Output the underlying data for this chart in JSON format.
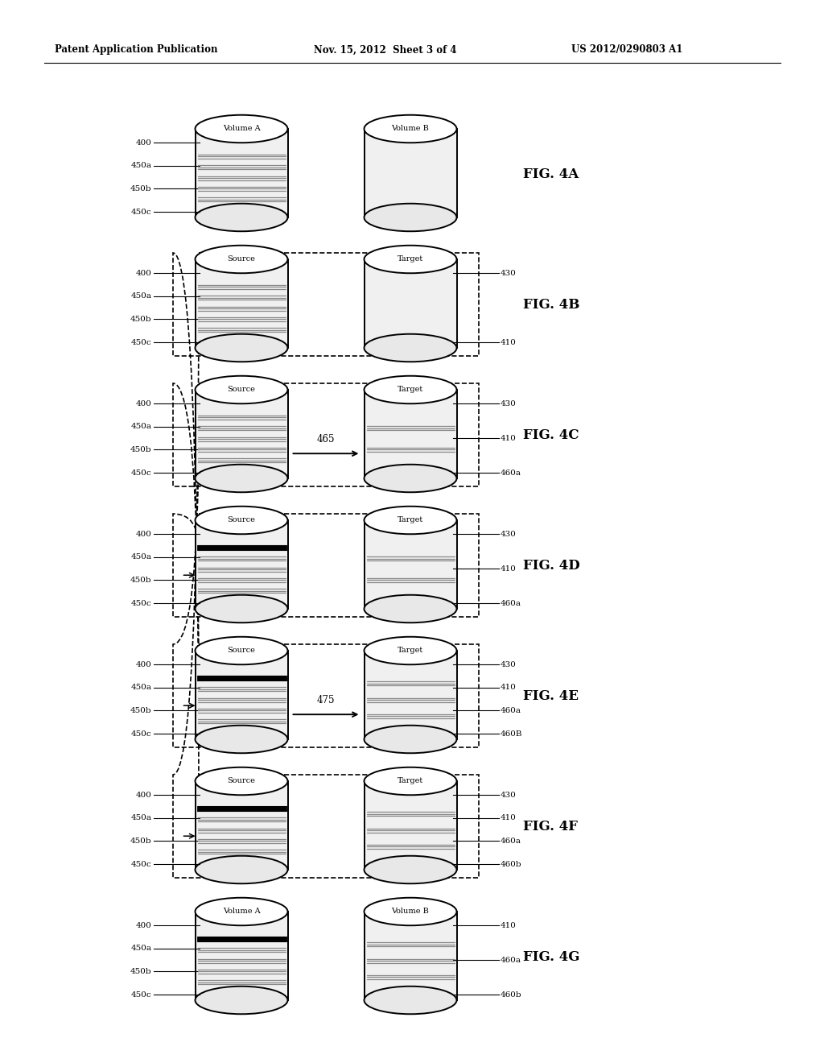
{
  "header_left": "Patent Application Publication",
  "header_mid": "Nov. 15, 2012  Sheet 3 of 4",
  "header_right": "US 2012/0290803 A1",
  "background": "#ffffff",
  "fig_rows": [
    {
      "name": "FIG. 4A",
      "has_ellipse": false,
      "has_horiz_arrow": false,
      "has_left_arrow": false,
      "src_label": "Volume A",
      "tgt_label": "Volume B",
      "src_bands": [
        {
          "thick": false,
          "black": false
        },
        {
          "thick": false,
          "black": false
        },
        {
          "thick": false,
          "black": false
        },
        {
          "thick": false,
          "black": false
        },
        {
          "thick": false,
          "black": false
        }
      ],
      "tgt_bands": [],
      "left_labels": [
        "400",
        "450a",
        "450b",
        "450c"
      ],
      "right_labels": [],
      "arrow_label": null
    },
    {
      "name": "FIG. 4B",
      "has_ellipse": true,
      "has_horiz_arrow": false,
      "has_left_arrow": false,
      "src_label": "Source",
      "tgt_label": "Target",
      "src_bands": [
        {
          "thick": false,
          "black": false
        },
        {
          "thick": false,
          "black": false
        },
        {
          "thick": false,
          "black": false
        },
        {
          "thick": false,
          "black": false
        },
        {
          "thick": false,
          "black": false
        }
      ],
      "tgt_bands": [],
      "left_labels": [
        "400",
        "450a",
        "450b",
        "450c"
      ],
      "right_labels": [
        "430",
        "410"
      ],
      "arrow_label": null
    },
    {
      "name": "FIG. 4C",
      "has_ellipse": true,
      "has_horiz_arrow": true,
      "has_left_arrow": false,
      "src_label": "Source",
      "tgt_label": "Target",
      "src_bands": [
        {
          "thick": false,
          "black": false
        },
        {
          "thick": false,
          "black": false
        },
        {
          "thick": false,
          "black": false
        },
        {
          "thick": false,
          "black": false
        },
        {
          "thick": false,
          "black": false
        }
      ],
      "tgt_bands": [
        {
          "thick": false,
          "black": false
        },
        {
          "thick": false,
          "black": false
        }
      ],
      "left_labels": [
        "400",
        "450a",
        "450b",
        "450c"
      ],
      "right_labels": [
        "430",
        "410",
        "460a"
      ],
      "arrow_label": "465"
    },
    {
      "name": "FIG. 4D",
      "has_ellipse": true,
      "has_horiz_arrow": false,
      "has_left_arrow": true,
      "src_label": "Source",
      "tgt_label": "Target",
      "src_bands": [
        {
          "thick": true,
          "black": true
        },
        {
          "thick": false,
          "black": false
        },
        {
          "thick": false,
          "black": false
        },
        {
          "thick": false,
          "black": false
        },
        {
          "thick": false,
          "black": false
        }
      ],
      "tgt_bands": [
        {
          "thick": false,
          "black": false
        },
        {
          "thick": false,
          "black": false
        }
      ],
      "left_labels": [
        "400",
        "450a",
        "450b",
        "450c"
      ],
      "right_labels": [
        "430",
        "410",
        "460a"
      ],
      "arrow_label": null
    },
    {
      "name": "FIG. 4E",
      "has_ellipse": true,
      "has_horiz_arrow": true,
      "has_left_arrow": true,
      "src_label": "Source",
      "tgt_label": "Target",
      "src_bands": [
        {
          "thick": true,
          "black": true
        },
        {
          "thick": false,
          "black": false
        },
        {
          "thick": false,
          "black": false
        },
        {
          "thick": false,
          "black": false
        },
        {
          "thick": false,
          "black": false
        }
      ],
      "tgt_bands": [
        {
          "thick": false,
          "black": false
        },
        {
          "thick": false,
          "black": false
        },
        {
          "thick": false,
          "black": false
        }
      ],
      "left_labels": [
        "400",
        "450a",
        "450b",
        "450c"
      ],
      "right_labels": [
        "430",
        "410",
        "460a",
        "460B"
      ],
      "arrow_label": "475"
    },
    {
      "name": "FIG. 4F",
      "has_ellipse": true,
      "has_horiz_arrow": false,
      "has_left_arrow": true,
      "src_label": "Source",
      "tgt_label": "Target",
      "src_bands": [
        {
          "thick": true,
          "black": true
        },
        {
          "thick": false,
          "black": false
        },
        {
          "thick": false,
          "black": false
        },
        {
          "thick": false,
          "black": false
        },
        {
          "thick": false,
          "black": false
        }
      ],
      "tgt_bands": [
        {
          "thick": false,
          "black": false
        },
        {
          "thick": false,
          "black": false
        },
        {
          "thick": false,
          "black": false
        }
      ],
      "left_labels": [
        "400",
        "450a",
        "450b",
        "450c"
      ],
      "right_labels": [
        "430",
        "410",
        "460a",
        "460b"
      ],
      "arrow_label": null
    },
    {
      "name": "FIG. 4G",
      "has_ellipse": false,
      "has_horiz_arrow": false,
      "has_left_arrow": false,
      "src_label": "Volume A",
      "tgt_label": "Volume B",
      "src_bands": [
        {
          "thick": true,
          "black": true
        },
        {
          "thick": false,
          "black": false
        },
        {
          "thick": false,
          "black": false
        },
        {
          "thick": false,
          "black": false
        },
        {
          "thick": false,
          "black": false
        }
      ],
      "tgt_bands": [
        {
          "thick": false,
          "black": false
        },
        {
          "thick": false,
          "black": false
        },
        {
          "thick": false,
          "black": false
        }
      ],
      "left_labels": [
        "400",
        "450a",
        "450b",
        "450c"
      ],
      "right_labels": [
        "410",
        "460a",
        "460b"
      ],
      "arrow_label": null
    }
  ]
}
